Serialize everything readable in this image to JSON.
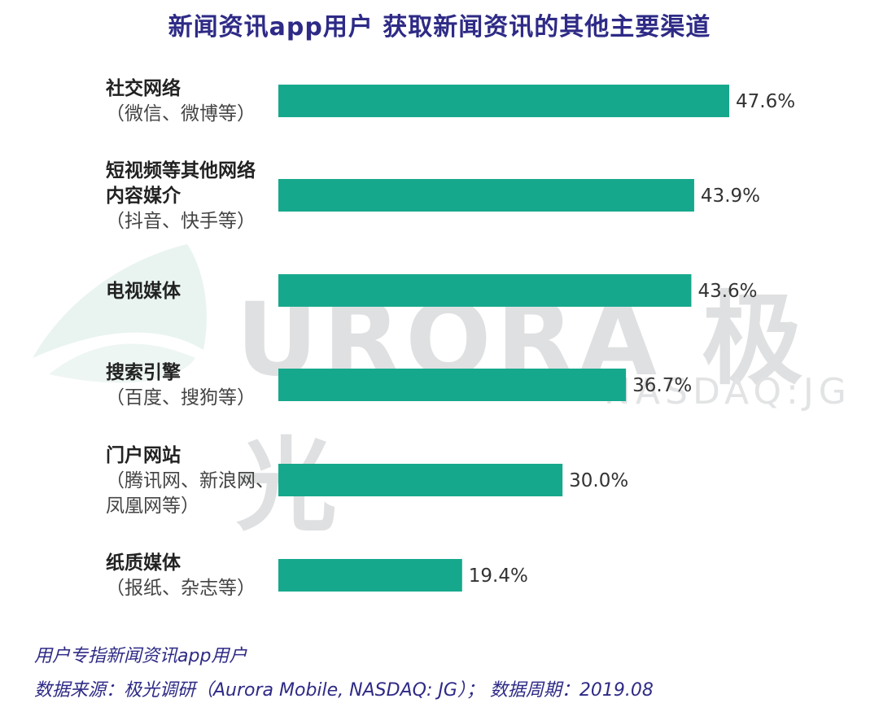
{
  "title": "新闻资讯app用户 获取新闻资讯的其他主要渠道",
  "watermark": {
    "brand": "URORA",
    "brand_cn": "极光",
    "ticker": "NASDAQ:JG"
  },
  "chart_data": {
    "type": "bar",
    "orientation": "horizontal",
    "categories": [
      {
        "lines": [
          "社交网络"
        ],
        "sub": [
          "（微信、微博等）"
        ]
      },
      {
        "lines": [
          "短视频等其他网络",
          "内容媒介"
        ],
        "sub": [
          "（抖音、快手等）"
        ]
      },
      {
        "lines": [
          "电视媒体"
        ],
        "sub": []
      },
      {
        "lines": [
          "搜索引擎"
        ],
        "sub": [
          "（百度、搜狗等）"
        ]
      },
      {
        "lines": [
          "门户网站"
        ],
        "sub": [
          "（腾讯网、新浪网、",
          "凤凰网等）"
        ]
      },
      {
        "lines": [
          "纸质媒体"
        ],
        "sub": [
          "（报纸、杂志等）"
        ]
      }
    ],
    "values": [
      47.6,
      43.9,
      43.6,
      36.7,
      30.0,
      19.4
    ],
    "value_labels": [
      "47.6%",
      "43.9%",
      "43.6%",
      "36.7%",
      "30.0%",
      "19.4%"
    ],
    "bar_color": "#16a88c",
    "xlim": [
      0,
      50
    ],
    "grid": false,
    "legend": "none"
  },
  "footer": {
    "note": "用户专指新闻资讯app用户",
    "source": "数据来源：极光调研（Aurora Mobile, NASDAQ: JG）；  数据周期：2019.08"
  }
}
